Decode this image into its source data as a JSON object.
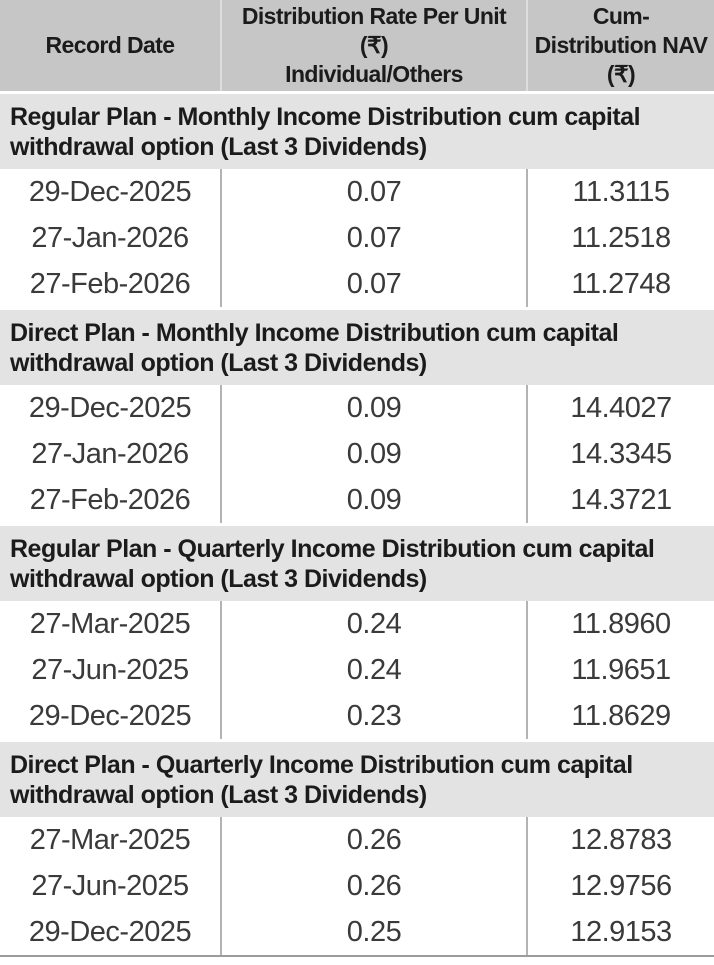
{
  "colors": {
    "header_bg": "#c6c6c6",
    "section_band_bg": "#e3e3e3",
    "divider_header": "#dedede",
    "divider_body": "#b3b3b3",
    "text_dark": "#1b1b1b",
    "text_data": "#3a3a3a",
    "bottom_rule": "#9b9b9b"
  },
  "table": {
    "header": {
      "record_date": "Record Date",
      "rate_line1": "Distribution Rate Per Unit (₹)",
      "rate_line2": "Individual/Others",
      "nav": "Cum-Distribution NAV (₹)"
    },
    "sections": [
      {
        "title": "Regular Plan - Monthly Income Distribution cum capital withdrawal option (Last 3 Dividends)",
        "rows": [
          {
            "date": "29-Dec-2025",
            "rate": "0.07",
            "nav": "11.3115"
          },
          {
            "date": "27-Jan-2026",
            "rate": "0.07",
            "nav": "11.2518"
          },
          {
            "date": "27-Feb-2026",
            "rate": "0.07",
            "nav": "11.2748"
          }
        ]
      },
      {
        "title": "Direct Plan - Monthly Income Distribution cum capital withdrawal option (Last 3 Dividends)",
        "rows": [
          {
            "date": "29-Dec-2025",
            "rate": "0.09",
            "nav": "14.4027"
          },
          {
            "date": "27-Jan-2026",
            "rate": "0.09",
            "nav": "14.3345"
          },
          {
            "date": "27-Feb-2026",
            "rate": "0.09",
            "nav": "14.3721"
          }
        ]
      },
      {
        "title": "Regular Plan - Quarterly Income Distribution cum capital withdrawal option (Last 3 Dividends)",
        "rows": [
          {
            "date": "27-Mar-2025",
            "rate": "0.24",
            "nav": "11.8960"
          },
          {
            "date": "27-Jun-2025",
            "rate": "0.24",
            "nav": "11.9651"
          },
          {
            "date": "29-Dec-2025",
            "rate": "0.23",
            "nav": "11.8629"
          }
        ]
      },
      {
        "title": "Direct Plan - Quarterly Income Distribution cum capital withdrawal option (Last 3 Dividends)",
        "rows": [
          {
            "date": "27-Mar-2025",
            "rate": "0.26",
            "nav": "12.8783"
          },
          {
            "date": "27-Jun-2025",
            "rate": "0.26",
            "nav": "12.9756"
          },
          {
            "date": "29-Dec-2025",
            "rate": "0.25",
            "nav": "12.9153"
          }
        ]
      }
    ]
  }
}
